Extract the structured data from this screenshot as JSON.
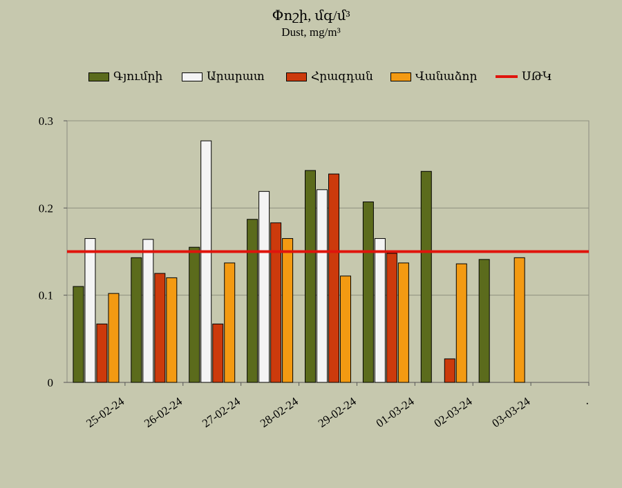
{
  "chart_data": {
    "type": "bar",
    "title": "Փոշի, մգ/մ³",
    "subtitle": "Dust, mg/m³",
    "categories": [
      "25-02-24",
      "26-02-24",
      "27-02-24",
      "28-02-24",
      "29-02-24",
      "01-03-24",
      "02-03-24",
      "03-03-24",
      "."
    ],
    "series": [
      {
        "name": "Գյումրի",
        "color": "#5b6b1c",
        "values": [
          0.11,
          0.143,
          0.155,
          0.187,
          0.243,
          0.207,
          0.242,
          0.141,
          null
        ]
      },
      {
        "name": "Արարատ",
        "color": "#f4f4f4",
        "values": [
          0.165,
          0.164,
          0.277,
          0.219,
          0.221,
          0.165,
          null,
          null,
          null
        ]
      },
      {
        "name": "Հրազդան",
        "color": "#cc3a0c",
        "values": [
          0.067,
          0.125,
          0.067,
          0.183,
          0.239,
          0.148,
          0.027,
          null,
          null
        ]
      },
      {
        "name": "Վանաձոր",
        "color": "#f39a12",
        "values": [
          0.102,
          0.12,
          0.137,
          0.165,
          0.122,
          0.137,
          0.136,
          0.143,
          null
        ]
      }
    ],
    "reference_line": {
      "name": "ՍԹԿ",
      "value": 0.15,
      "color": "#e0140c"
    },
    "yticks": [
      "0",
      "0.1",
      "0.2",
      "0.3"
    ],
    "ylim": [
      0,
      0.3
    ],
    "grid": true,
    "legend_position": "top"
  }
}
